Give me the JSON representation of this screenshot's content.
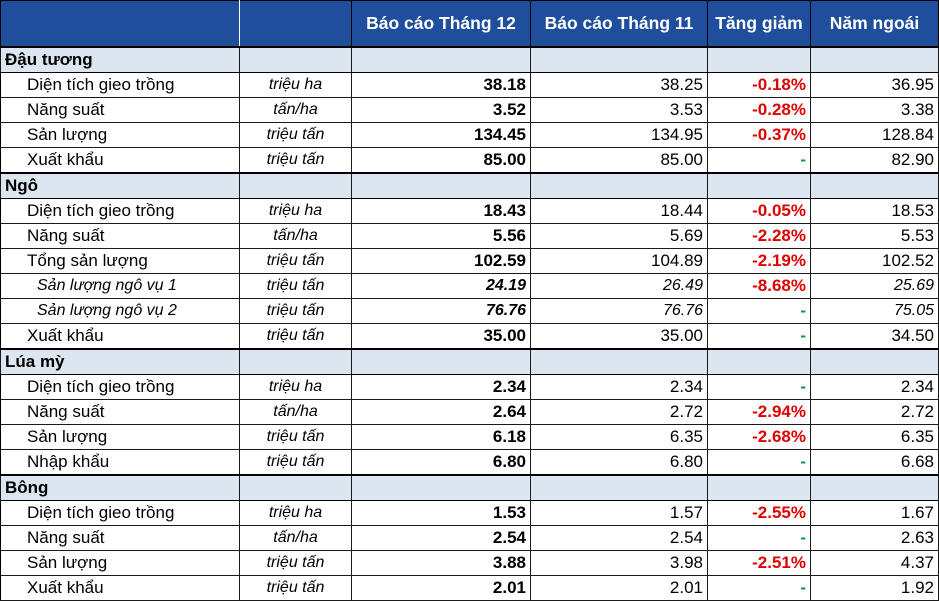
{
  "header": {
    "col_report_current": "Báo cáo Tháng 12",
    "col_report_previous": "Báo cáo Tháng 11",
    "col_change": "Tăng giảm",
    "col_last_year": "Năm ngoái"
  },
  "colors": {
    "header_bg": "#1f4e9c",
    "group_bg": "#dce6f1",
    "negative": "#e00000",
    "unchanged": "#00a03c"
  },
  "groups": [
    {
      "name": "Đậu tương",
      "rows": [
        {
          "label": "Diện tích gieo trồng",
          "unit": "triệu ha",
          "current": "38.18",
          "previous": "38.25",
          "change": "-0.18%",
          "last_year": "36.95",
          "sub": false
        },
        {
          "label": "Năng suất",
          "unit": "tấn/ha",
          "current": "3.52",
          "previous": "3.53",
          "change": "-0.28%",
          "last_year": "3.38",
          "sub": false
        },
        {
          "label": "Sản lượng",
          "unit": "triệu tấn",
          "current": "134.45",
          "previous": "134.95",
          "change": "-0.37%",
          "last_year": "128.84",
          "sub": false
        },
        {
          "label": "Xuất khẩu",
          "unit": "triệu tấn",
          "current": "85.00",
          "previous": "85.00",
          "change": "-",
          "last_year": "82.90",
          "sub": false
        }
      ]
    },
    {
      "name": "Ngô",
      "rows": [
        {
          "label": "Diện tích gieo trồng",
          "unit": "triệu ha",
          "current": "18.43",
          "previous": "18.44",
          "change": "-0.05%",
          "last_year": "18.53",
          "sub": false
        },
        {
          "label": "Năng suất",
          "unit": "tấn/ha",
          "current": "5.56",
          "previous": "5.69",
          "change": "-2.28%",
          "last_year": "5.53",
          "sub": false
        },
        {
          "label": "Tổng sản lượng",
          "unit": "triệu tấn",
          "current": "102.59",
          "previous": "104.89",
          "change": "-2.19%",
          "last_year": "102.52",
          "sub": false
        },
        {
          "label": "Sản lượng ngô vụ 1",
          "unit": "triệu tấn",
          "current": "24.19",
          "previous": "26.49",
          "change": "-8.68%",
          "last_year": "25.69",
          "sub": true
        },
        {
          "label": "Sản lượng ngô vụ 2",
          "unit": "triệu tấn",
          "current": "76.76",
          "previous": "76.76",
          "change": "-",
          "last_year": "75.05",
          "sub": true
        },
        {
          "label": "Xuất khẩu",
          "unit": "triệu tấn",
          "current": "35.00",
          "previous": "35.00",
          "change": "-",
          "last_year": "34.50",
          "sub": false
        }
      ]
    },
    {
      "name": "Lúa mỳ",
      "rows": [
        {
          "label": "Diện tích gieo trồng",
          "unit": "triệu ha",
          "current": "2.34",
          "previous": "2.34",
          "change": "-",
          "last_year": "2.34",
          "sub": false
        },
        {
          "label": "Năng suất",
          "unit": "tấn/ha",
          "current": "2.64",
          "previous": "2.72",
          "change": "-2.94%",
          "last_year": "2.72",
          "sub": false
        },
        {
          "label": "Sản lượng",
          "unit": "triệu tấn",
          "current": "6.18",
          "previous": "6.35",
          "change": "-2.68%",
          "last_year": "6.35",
          "sub": false
        },
        {
          "label": "Nhập khẩu",
          "unit": "triệu tấn",
          "current": "6.80",
          "previous": "6.80",
          "change": "-",
          "last_year": "6.68",
          "sub": false
        }
      ]
    },
    {
      "name": "Bông",
      "rows": [
        {
          "label": "Diện tích gieo trồng",
          "unit": "triệu ha",
          "current": "1.53",
          "previous": "1.57",
          "change": "-2.55%",
          "last_year": "1.67",
          "sub": false
        },
        {
          "label": "Năng suất",
          "unit": "tấn/ha",
          "current": "2.54",
          "previous": "2.54",
          "change": "-",
          "last_year": "2.63",
          "sub": false
        },
        {
          "label": "Sản lượng",
          "unit": "triệu tấn",
          "current": "3.88",
          "previous": "3.98",
          "change": "-2.51%",
          "last_year": "4.37",
          "sub": false
        },
        {
          "label": "Xuất khẩu",
          "unit": "triệu tấn",
          "current": "2.01",
          "previous": "2.01",
          "change": "-",
          "last_year": "1.92",
          "sub": false
        }
      ]
    }
  ]
}
